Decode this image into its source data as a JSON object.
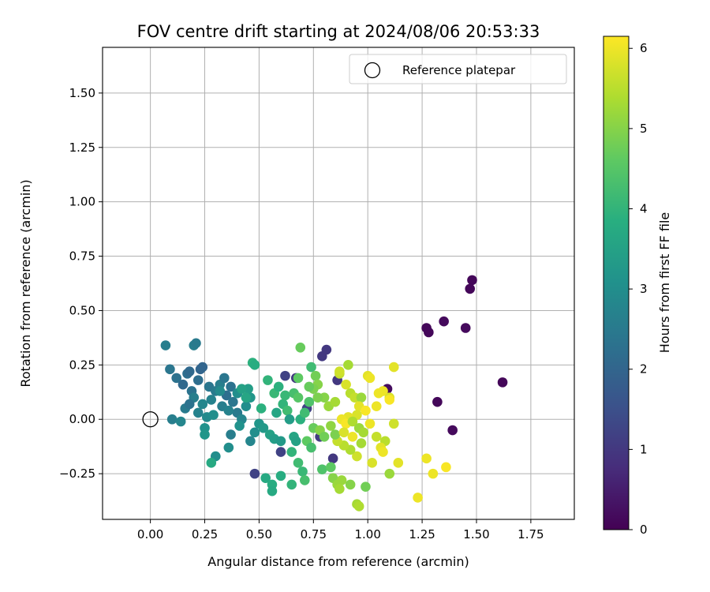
{
  "chart_data": {
    "type": "scatter",
    "title": "FOV centre drift starting at 2024/08/06 20:53:33",
    "xlabel": "Angular distance from reference (arcmin)",
    "ylabel": "Rotation from reference (arcmin)",
    "xlim": [
      -0.22,
      1.95
    ],
    "ylim": [
      -0.46,
      1.71
    ],
    "xticks": [
      "0.00",
      "0.25",
      "0.50",
      "0.75",
      "1.00",
      "1.25",
      "1.50",
      "1.75"
    ],
    "yticks": [
      "−0.25",
      "0.00",
      "0.25",
      "0.50",
      "0.75",
      "1.00",
      "1.25",
      "1.50"
    ],
    "grid": true,
    "legend": {
      "position": "top-right",
      "label": "Reference platepar"
    },
    "colorbar": {
      "label": "Hours from first FF file",
      "range": [
        0,
        6.15
      ],
      "ticks": [
        "0",
        "1",
        "2",
        "3",
        "4",
        "5",
        "6"
      ],
      "colormap": "viridis"
    },
    "reference_point": {
      "x": 0.0,
      "y": 0.0
    },
    "points": [
      {
        "x": 1.48,
        "y": 0.64,
        "c": 0.1
      },
      {
        "x": 1.47,
        "y": 0.6,
        "c": 0.1
      },
      {
        "x": 1.27,
        "y": 0.42,
        "c": 0.1
      },
      {
        "x": 1.28,
        "y": 0.4,
        "c": 0.1
      },
      {
        "x": 1.35,
        "y": 0.45,
        "c": 0.15
      },
      {
        "x": 1.45,
        "y": 0.42,
        "c": 0.15
      },
      {
        "x": 1.62,
        "y": 0.17,
        "c": 0.1
      },
      {
        "x": 1.32,
        "y": 0.08,
        "c": 0.1
      },
      {
        "x": 1.39,
        "y": -0.05,
        "c": 0.15
      },
      {
        "x": 1.09,
        "y": 0.14,
        "c": 0.2
      },
      {
        "x": 0.81,
        "y": 0.32,
        "c": 1.0
      },
      {
        "x": 0.79,
        "y": 0.29,
        "c": 1.0
      },
      {
        "x": 0.62,
        "y": 0.2,
        "c": 1.2
      },
      {
        "x": 0.67,
        "y": 0.19,
        "c": 1.0
      },
      {
        "x": 0.72,
        "y": 0.05,
        "c": 1.2
      },
      {
        "x": 0.6,
        "y": -0.15,
        "c": 1.2
      },
      {
        "x": 0.48,
        "y": -0.25,
        "c": 1.2
      },
      {
        "x": 0.84,
        "y": -0.18,
        "c": 1.0
      },
      {
        "x": 0.86,
        "y": 0.18,
        "c": 1.0
      },
      {
        "x": 0.78,
        "y": -0.08,
        "c": 1.1
      },
      {
        "x": 0.07,
        "y": 0.34,
        "c": 2.6
      },
      {
        "x": 0.2,
        "y": 0.34,
        "c": 2.6
      },
      {
        "x": 0.21,
        "y": 0.35,
        "c": 2.5
      },
      {
        "x": 0.09,
        "y": 0.23,
        "c": 2.4
      },
      {
        "x": 0.12,
        "y": 0.19,
        "c": 2.3
      },
      {
        "x": 0.17,
        "y": 0.21,
        "c": 2.2
      },
      {
        "x": 0.18,
        "y": 0.22,
        "c": 2.1
      },
      {
        "x": 0.23,
        "y": 0.23,
        "c": 2.0
      },
      {
        "x": 0.24,
        "y": 0.24,
        "c": 2.0
      },
      {
        "x": 0.15,
        "y": 0.16,
        "c": 2.1
      },
      {
        "x": 0.19,
        "y": 0.13,
        "c": 2.3
      },
      {
        "x": 0.22,
        "y": 0.18,
        "c": 2.2
      },
      {
        "x": 0.27,
        "y": 0.15,
        "c": 2.4
      },
      {
        "x": 0.3,
        "y": 0.13,
        "c": 2.5
      },
      {
        "x": 0.32,
        "y": 0.16,
        "c": 2.6
      },
      {
        "x": 0.34,
        "y": 0.19,
        "c": 2.4
      },
      {
        "x": 0.37,
        "y": 0.15,
        "c": 2.3
      },
      {
        "x": 0.35,
        "y": 0.11,
        "c": 2.2
      },
      {
        "x": 0.28,
        "y": 0.09,
        "c": 2.7
      },
      {
        "x": 0.24,
        "y": 0.07,
        "c": 2.8
      },
      {
        "x": 0.2,
        "y": 0.1,
        "c": 2.6
      },
      {
        "x": 0.16,
        "y": 0.05,
        "c": 2.5
      },
      {
        "x": 0.18,
        "y": 0.07,
        "c": 2.3
      },
      {
        "x": 0.22,
        "y": 0.03,
        "c": 2.7
      },
      {
        "x": 0.26,
        "y": 0.01,
        "c": 2.9
      },
      {
        "x": 0.29,
        "y": 0.02,
        "c": 3.0
      },
      {
        "x": 0.1,
        "y": 0.0,
        "c": 2.6
      },
      {
        "x": 0.14,
        "y": -0.01,
        "c": 2.8
      },
      {
        "x": 0.25,
        "y": -0.04,
        "c": 3.1
      },
      {
        "x": 0.25,
        "y": -0.07,
        "c": 3.2
      },
      {
        "x": 0.3,
        "y": -0.17,
        "c": 3.0
      },
      {
        "x": 0.36,
        "y": -0.13,
        "c": 3.0
      },
      {
        "x": 0.28,
        "y": -0.2,
        "c": 3.7
      },
      {
        "x": 0.33,
        "y": 0.06,
        "c": 2.6
      },
      {
        "x": 0.38,
        "y": 0.08,
        "c": 2.4
      },
      {
        "x": 0.4,
        "y": 0.03,
        "c": 2.5
      },
      {
        "x": 0.42,
        "y": 0.0,
        "c": 2.8
      },
      {
        "x": 0.44,
        "y": 0.06,
        "c": 3.0
      },
      {
        "x": 0.46,
        "y": 0.1,
        "c": 3.2
      },
      {
        "x": 0.4,
        "y": 0.12,
        "c": 3.0
      },
      {
        "x": 0.45,
        "y": 0.14,
        "c": 3.4
      },
      {
        "x": 0.44,
        "y": 0.1,
        "c": 3.6
      },
      {
        "x": 0.41,
        "y": -0.03,
        "c": 3.1
      },
      {
        "x": 0.46,
        "y": -0.1,
        "c": 2.8
      },
      {
        "x": 0.37,
        "y": -0.07,
        "c": 2.6
      },
      {
        "x": 0.5,
        "y": -0.02,
        "c": 3.2
      },
      {
        "x": 0.52,
        "y": -0.04,
        "c": 3.3
      },
      {
        "x": 0.48,
        "y": -0.06,
        "c": 3.0
      },
      {
        "x": 0.47,
        "y": 0.26,
        "c": 3.9
      },
      {
        "x": 0.48,
        "y": 0.25,
        "c": 3.8
      },
      {
        "x": 0.51,
        "y": 0.05,
        "c": 3.9
      },
      {
        "x": 0.54,
        "y": 0.18,
        "c": 4.0
      },
      {
        "x": 0.57,
        "y": 0.12,
        "c": 4.1
      },
      {
        "x": 0.59,
        "y": 0.15,
        "c": 3.9
      },
      {
        "x": 0.61,
        "y": 0.07,
        "c": 4.0
      },
      {
        "x": 0.63,
        "y": 0.04,
        "c": 4.2
      },
      {
        "x": 0.58,
        "y": 0.03,
        "c": 3.6
      },
      {
        "x": 0.55,
        "y": -0.07,
        "c": 3.5
      },
      {
        "x": 0.57,
        "y": -0.09,
        "c": 3.4
      },
      {
        "x": 0.6,
        "y": -0.1,
        "c": 3.3
      },
      {
        "x": 0.53,
        "y": -0.27,
        "c": 3.7
      },
      {
        "x": 0.56,
        "y": -0.3,
        "c": 3.8
      },
      {
        "x": 0.56,
        "y": -0.33,
        "c": 3.7
      },
      {
        "x": 0.6,
        "y": -0.26,
        "c": 3.8
      },
      {
        "x": 0.65,
        "y": -0.3,
        "c": 4.0
      },
      {
        "x": 0.7,
        "y": -0.24,
        "c": 4.1
      },
      {
        "x": 0.71,
        "y": -0.28,
        "c": 4.3
      },
      {
        "x": 0.68,
        "y": -0.2,
        "c": 4.2
      },
      {
        "x": 0.65,
        "y": -0.15,
        "c": 4.0
      },
      {
        "x": 0.66,
        "y": -0.08,
        "c": 3.6
      },
      {
        "x": 0.67,
        "y": -0.1,
        "c": 3.5
      },
      {
        "x": 0.64,
        "y": 0.0,
        "c": 3.4
      },
      {
        "x": 0.69,
        "y": 0.0,
        "c": 3.9
      },
      {
        "x": 0.71,
        "y": 0.03,
        "c": 4.2
      },
      {
        "x": 0.73,
        "y": 0.08,
        "c": 4.4
      },
      {
        "x": 0.66,
        "y": 0.12,
        "c": 4.3
      },
      {
        "x": 0.68,
        "y": 0.1,
        "c": 4.5
      },
      {
        "x": 0.69,
        "y": 0.33,
        "c": 4.7
      },
      {
        "x": 0.68,
        "y": 0.19,
        "c": 4.6
      },
      {
        "x": 0.74,
        "y": 0.24,
        "c": 4.2
      },
      {
        "x": 0.76,
        "y": 0.2,
        "c": 4.8
      },
      {
        "x": 0.77,
        "y": 0.16,
        "c": 5.0
      },
      {
        "x": 0.75,
        "y": 0.14,
        "c": 4.9
      },
      {
        "x": 0.72,
        "y": -0.1,
        "c": 4.6
      },
      {
        "x": 0.74,
        "y": -0.13,
        "c": 4.3
      },
      {
        "x": 0.75,
        "y": -0.04,
        "c": 4.7
      },
      {
        "x": 0.78,
        "y": -0.05,
        "c": 5.0
      },
      {
        "x": 0.8,
        "y": -0.08,
        "c": 4.8
      },
      {
        "x": 0.79,
        "y": -0.23,
        "c": 4.4
      },
      {
        "x": 0.83,
        "y": -0.22,
        "c": 4.6
      },
      {
        "x": 0.84,
        "y": -0.27,
        "c": 5.0
      },
      {
        "x": 0.86,
        "y": -0.3,
        "c": 5.2
      },
      {
        "x": 0.88,
        "y": -0.28,
        "c": 5.2
      },
      {
        "x": 0.87,
        "y": -0.32,
        "c": 5.3
      },
      {
        "x": 0.92,
        "y": -0.3,
        "c": 5.0
      },
      {
        "x": 0.99,
        "y": -0.31,
        "c": 4.8
      },
      {
        "x": 0.95,
        "y": -0.39,
        "c": 5.3
      },
      {
        "x": 0.96,
        "y": -0.4,
        "c": 5.4
      },
      {
        "x": 0.8,
        "y": 0.1,
        "c": 5.0
      },
      {
        "x": 0.82,
        "y": 0.06,
        "c": 5.2
      },
      {
        "x": 0.85,
        "y": 0.08,
        "c": 5.3
      },
      {
        "x": 0.87,
        "y": 0.21,
        "c": 5.6
      },
      {
        "x": 0.87,
        "y": 0.22,
        "c": 5.7
      },
      {
        "x": 0.91,
        "y": 0.25,
        "c": 5.3
      },
      {
        "x": 0.92,
        "y": 0.12,
        "c": 5.5
      },
      {
        "x": 0.9,
        "y": 0.16,
        "c": 5.8
      },
      {
        "x": 0.94,
        "y": 0.1,
        "c": 5.6
      },
      {
        "x": 0.97,
        "y": 0.1,
        "c": 5.2
      },
      {
        "x": 0.96,
        "y": 0.06,
        "c": 5.9
      },
      {
        "x": 1.0,
        "y": 0.2,
        "c": 5.9
      },
      {
        "x": 1.01,
        "y": 0.19,
        "c": 6.0
      },
      {
        "x": 1.12,
        "y": 0.24,
        "c": 5.9
      },
      {
        "x": 1.05,
        "y": 0.12,
        "c": 6.0
      },
      {
        "x": 1.07,
        "y": 0.13,
        "c": 6.0
      },
      {
        "x": 1.1,
        "y": 0.1,
        "c": 5.8
      },
      {
        "x": 1.1,
        "y": 0.09,
        "c": 6.1
      },
      {
        "x": 1.04,
        "y": 0.06,
        "c": 6.0
      },
      {
        "x": 0.99,
        "y": 0.04,
        "c": 6.1
      },
      {
        "x": 0.95,
        "y": 0.02,
        "c": 5.8
      },
      {
        "x": 0.91,
        "y": 0.01,
        "c": 5.9
      },
      {
        "x": 0.88,
        "y": 0.0,
        "c": 6.0
      },
      {
        "x": 0.9,
        "y": -0.02,
        "c": 6.1
      },
      {
        "x": 0.93,
        "y": -0.01,
        "c": 5.4
      },
      {
        "x": 0.96,
        "y": -0.04,
        "c": 5.2
      },
      {
        "x": 0.98,
        "y": -0.06,
        "c": 5.3
      },
      {
        "x": 1.01,
        "y": -0.02,
        "c": 6.0
      },
      {
        "x": 1.04,
        "y": -0.08,
        "c": 5.6
      },
      {
        "x": 1.08,
        "y": -0.1,
        "c": 5.5
      },
      {
        "x": 1.12,
        "y": -0.02,
        "c": 5.7
      },
      {
        "x": 1.06,
        "y": -0.13,
        "c": 5.9
      },
      {
        "x": 1.07,
        "y": -0.15,
        "c": 6.0
      },
      {
        "x": 1.02,
        "y": -0.2,
        "c": 5.8
      },
      {
        "x": 1.1,
        "y": -0.25,
        "c": 5.2
      },
      {
        "x": 1.14,
        "y": -0.2,
        "c": 5.9
      },
      {
        "x": 1.27,
        "y": -0.18,
        "c": 6.0
      },
      {
        "x": 1.3,
        "y": -0.25,
        "c": 6.0
      },
      {
        "x": 1.23,
        "y": -0.36,
        "c": 6.0
      },
      {
        "x": 1.36,
        "y": -0.22,
        "c": 6.1
      },
      {
        "x": 0.95,
        "y": -0.17,
        "c": 5.7
      },
      {
        "x": 0.92,
        "y": -0.14,
        "c": 5.4
      },
      {
        "x": 0.89,
        "y": -0.12,
        "c": 5.5
      },
      {
        "x": 0.86,
        "y": -0.1,
        "c": 5.6
      },
      {
        "x": 0.83,
        "y": -0.03,
        "c": 5.1
      },
      {
        "x": 0.85,
        "y": -0.07,
        "c": 4.9
      },
      {
        "x": 0.89,
        "y": -0.06,
        "c": 5.8
      },
      {
        "x": 0.93,
        "y": -0.08,
        "c": 6.0
      },
      {
        "x": 0.97,
        "y": -0.11,
        "c": 5.3
      },
      {
        "x": 0.77,
        "y": 0.1,
        "c": 4.9
      },
      {
        "x": 0.73,
        "y": 0.15,
        "c": 4.7
      },
      {
        "x": 0.62,
        "y": 0.11,
        "c": 4.1
      },
      {
        "x": 0.42,
        "y": 0.14,
        "c": 3.5
      },
      {
        "x": 0.32,
        "y": 0.13,
        "c": 2.9
      },
      {
        "x": 0.36,
        "y": 0.04,
        "c": 2.7
      }
    ]
  }
}
